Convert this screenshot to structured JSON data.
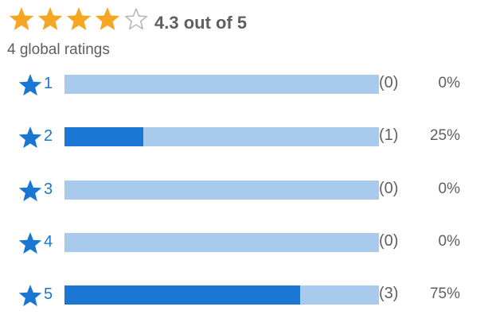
{
  "summary": {
    "average_rating": 4.3,
    "star_count": 5,
    "stars": [
      "full",
      "full",
      "full",
      "full",
      "empty"
    ],
    "rating_text": "4.3 out of 5",
    "global_ratings": "4 global ratings"
  },
  "colors": {
    "star_gold": "#f5a623",
    "star_empty_outline": "#b8b8b8",
    "bar_fill": "#1976d2",
    "bar_track": "#a7caed",
    "row_star": "#1976d2",
    "text_gray": "#5f5f5f"
  },
  "breakdown": [
    {
      "star_label": "1",
      "count_text": "(0)",
      "percent_text": "0%",
      "fraction": 0
    },
    {
      "star_label": "2",
      "count_text": "(1)",
      "percent_text": "25%",
      "fraction": 0.25
    },
    {
      "star_label": "3",
      "count_text": "(0)",
      "percent_text": "0%",
      "fraction": 0
    },
    {
      "star_label": "4",
      "count_text": "(0)",
      "percent_text": "0%",
      "fraction": 0
    },
    {
      "star_label": "5",
      "count_text": "(3)",
      "percent_text": "75%",
      "fraction": 0.75
    }
  ],
  "icons": {
    "summary_star": "star-icon",
    "row_star": "star-icon"
  }
}
